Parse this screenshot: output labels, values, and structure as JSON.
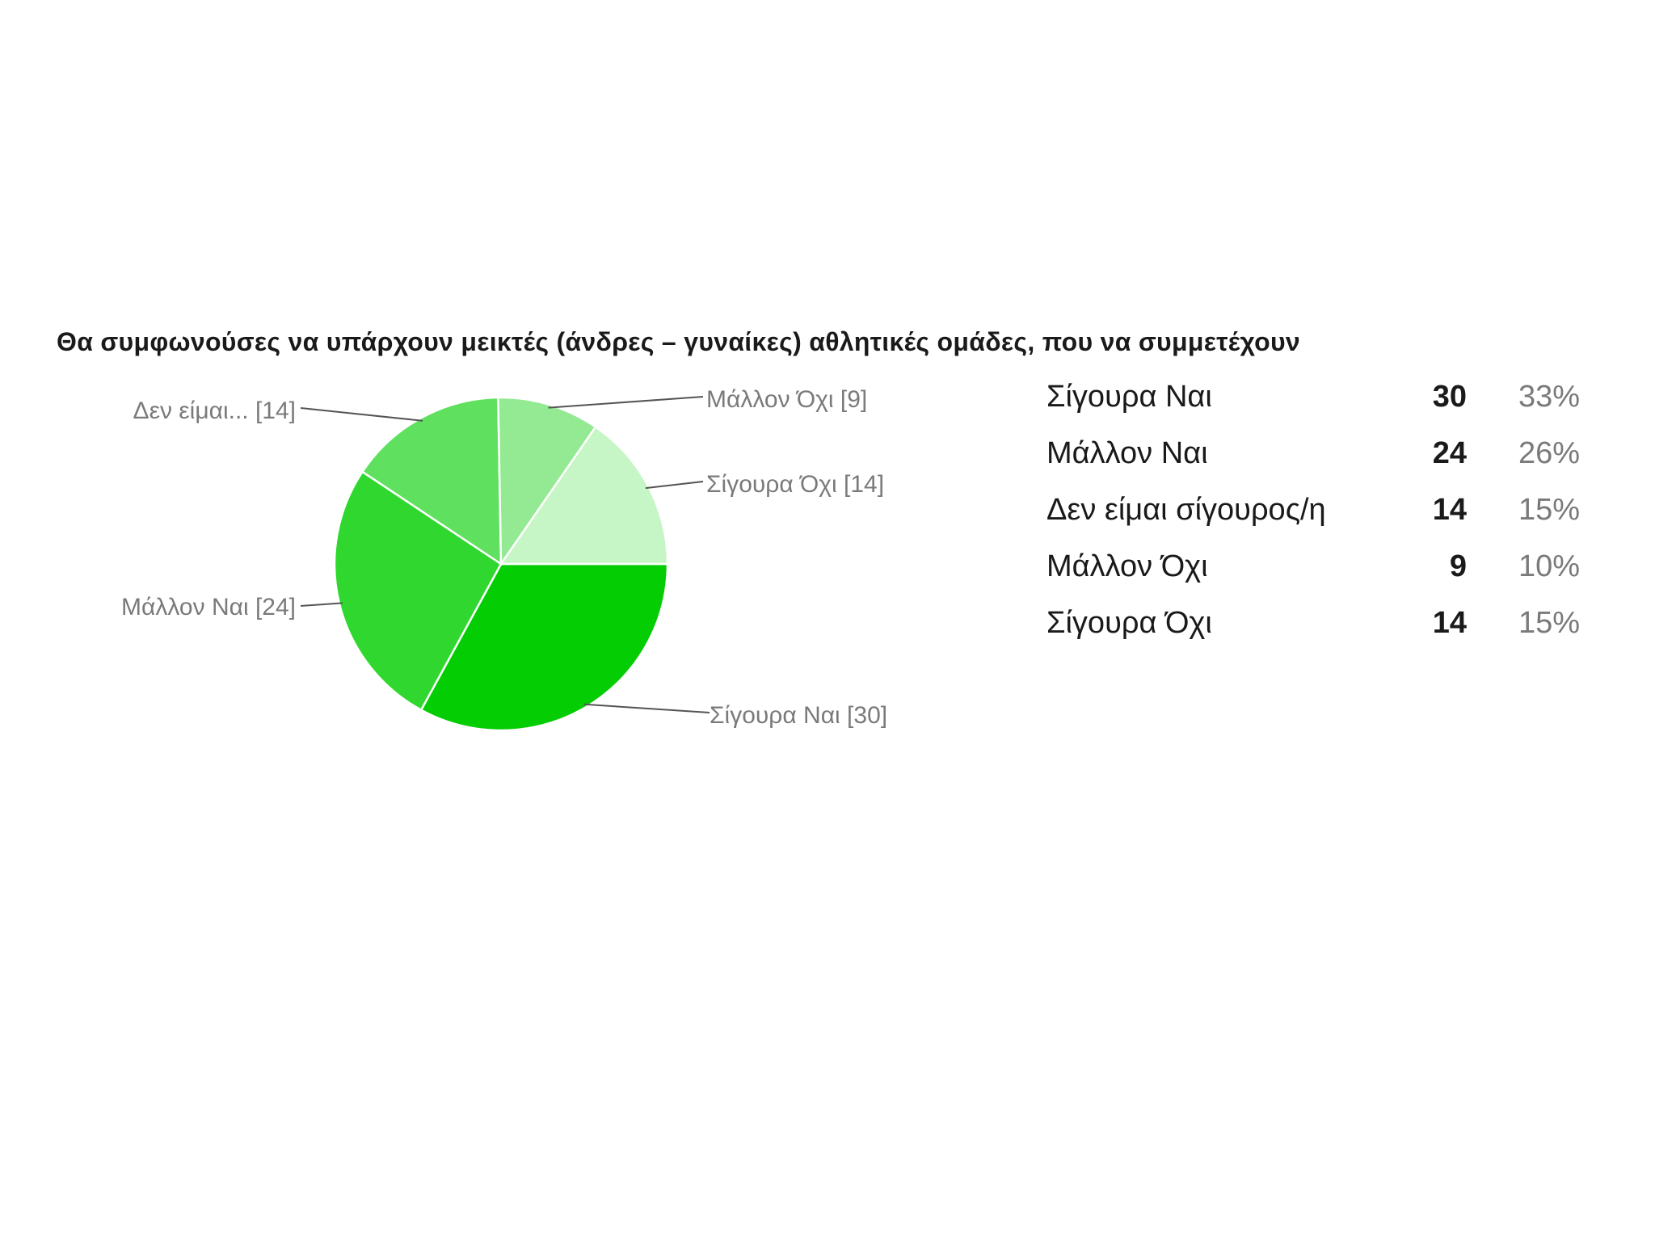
{
  "chart_data": {
    "type": "pie",
    "title": "Θα συμφωνούσες να υπάρχουν μεικτές (άνδρες – γυναίκες) αθλητικές ομάδες, που να συμμετέχουν",
    "slices": [
      {
        "label": "Σίγουρα Ναι",
        "chart_label": "Σίγουρα Ναι [30]",
        "value": 30,
        "percent": "33%",
        "color": "#04cd04"
      },
      {
        "label": "Μάλλον Ναι",
        "chart_label": "Μάλλον Ναι  [24]",
        "value": 24,
        "percent": "26%",
        "color": "#2fd72f"
      },
      {
        "label": "Δεν είμαι σίγουρος/η",
        "chart_label": "Δεν είμαι... [14]",
        "value": 14,
        "percent": "15%",
        "color": "#5fe05f"
      },
      {
        "label": "Μάλλον Όχι",
        "chart_label": "Μάλλον Όχι [9]",
        "value": 9,
        "percent": "10%",
        "color": "#93ea93"
      },
      {
        "label": "Σίγουρα Όχι",
        "chart_label": "Σίγουρα Όχι [14]",
        "value": 14,
        "percent": "15%",
        "color": "#c6f5c6"
      }
    ]
  }
}
